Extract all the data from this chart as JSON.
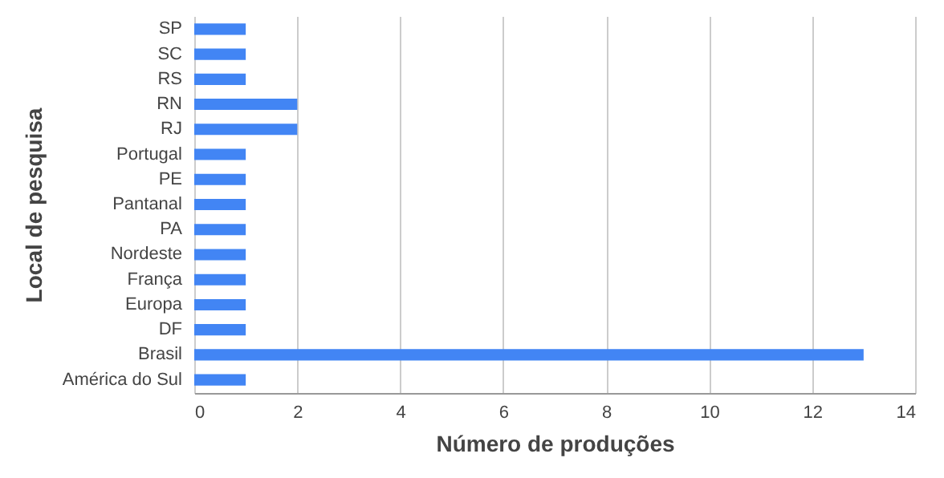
{
  "chart_data": {
    "type": "bar",
    "orientation": "horizontal",
    "xlabel": "Número de produções",
    "ylabel": "Local de pesquisa",
    "categories": [
      "SP",
      "SC",
      "RS",
      "RN",
      "RJ",
      "Portugal",
      "PE",
      "Pantanal ",
      "PA",
      "Nordeste",
      "França",
      "Europa",
      "DF",
      "Brasil",
      "América do Sul"
    ],
    "values": [
      1,
      1,
      1,
      2,
      2,
      1,
      1,
      1,
      1,
      1,
      1,
      1,
      1,
      13,
      1
    ],
    "color": "#4285f4",
    "xlim": [
      0,
      14
    ],
    "xticks": [
      0,
      2,
      4,
      6,
      8,
      10,
      12,
      14
    ],
    "grid": "x"
  }
}
